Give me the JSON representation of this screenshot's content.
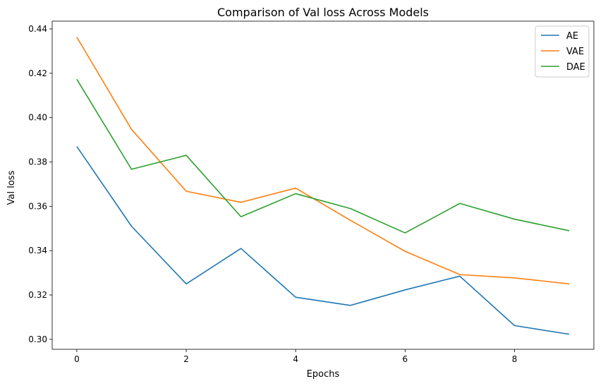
{
  "chart_data": {
    "type": "line",
    "title": "Comparison of Val loss Across Models",
    "xlabel": "Epochs",
    "ylabel": "Val loss",
    "x": [
      0,
      1,
      2,
      3,
      4,
      5,
      6,
      7,
      8,
      9
    ],
    "xlim": [
      -0.45,
      9.45
    ],
    "ylim": [
      0.2955,
      0.4435
    ],
    "xticks": [
      0,
      2,
      4,
      6,
      8
    ],
    "yticks": [
      0.3,
      0.32,
      0.34,
      0.36,
      0.38,
      0.4,
      0.42,
      0.44
    ],
    "xtick_labels": [
      "0",
      "2",
      "4",
      "6",
      "8"
    ],
    "ytick_labels": [
      "0.30",
      "0.32",
      "0.34",
      "0.36",
      "0.38",
      "0.40",
      "0.42",
      "0.44"
    ],
    "grid": false,
    "legend_position": "top-right",
    "series": [
      {
        "name": "AE",
        "color": "#1f77b4",
        "values": [
          0.387,
          0.351,
          0.325,
          0.341,
          0.319,
          0.3153,
          0.3223,
          0.3285,
          0.3062,
          0.3023
        ]
      },
      {
        "name": "VAE",
        "color": "#ff7f0e",
        "values": [
          0.4363,
          0.3947,
          0.3668,
          0.3618,
          0.3682,
          0.3537,
          0.3397,
          0.3292,
          0.3277,
          0.325
        ]
      },
      {
        "name": "DAE",
        "color": "#2ca02c",
        "values": [
          0.4173,
          0.3767,
          0.383,
          0.3553,
          0.3657,
          0.359,
          0.348,
          0.3613,
          0.3542,
          0.349
        ]
      }
    ]
  }
}
